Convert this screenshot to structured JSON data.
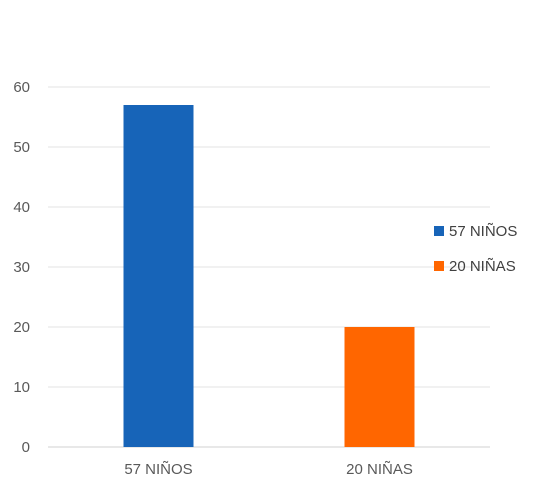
{
  "chart_data": {
    "type": "bar",
    "categories": [
      "57 NIÑOS",
      "20 NIÑAS"
    ],
    "values": [
      57,
      20
    ],
    "colors": [
      "#1764b8",
      "#ff6600"
    ],
    "ylim": [
      0,
      60
    ],
    "yticks": [
      0,
      10,
      20,
      30,
      40,
      50,
      60
    ],
    "grid": true,
    "legend": {
      "placement": "right",
      "entries": [
        {
          "label": "57 NIÑOS",
          "color": "#1764b8"
        },
        {
          "label": "20 NIÑAS",
          "color": "#ff6600"
        }
      ]
    }
  }
}
